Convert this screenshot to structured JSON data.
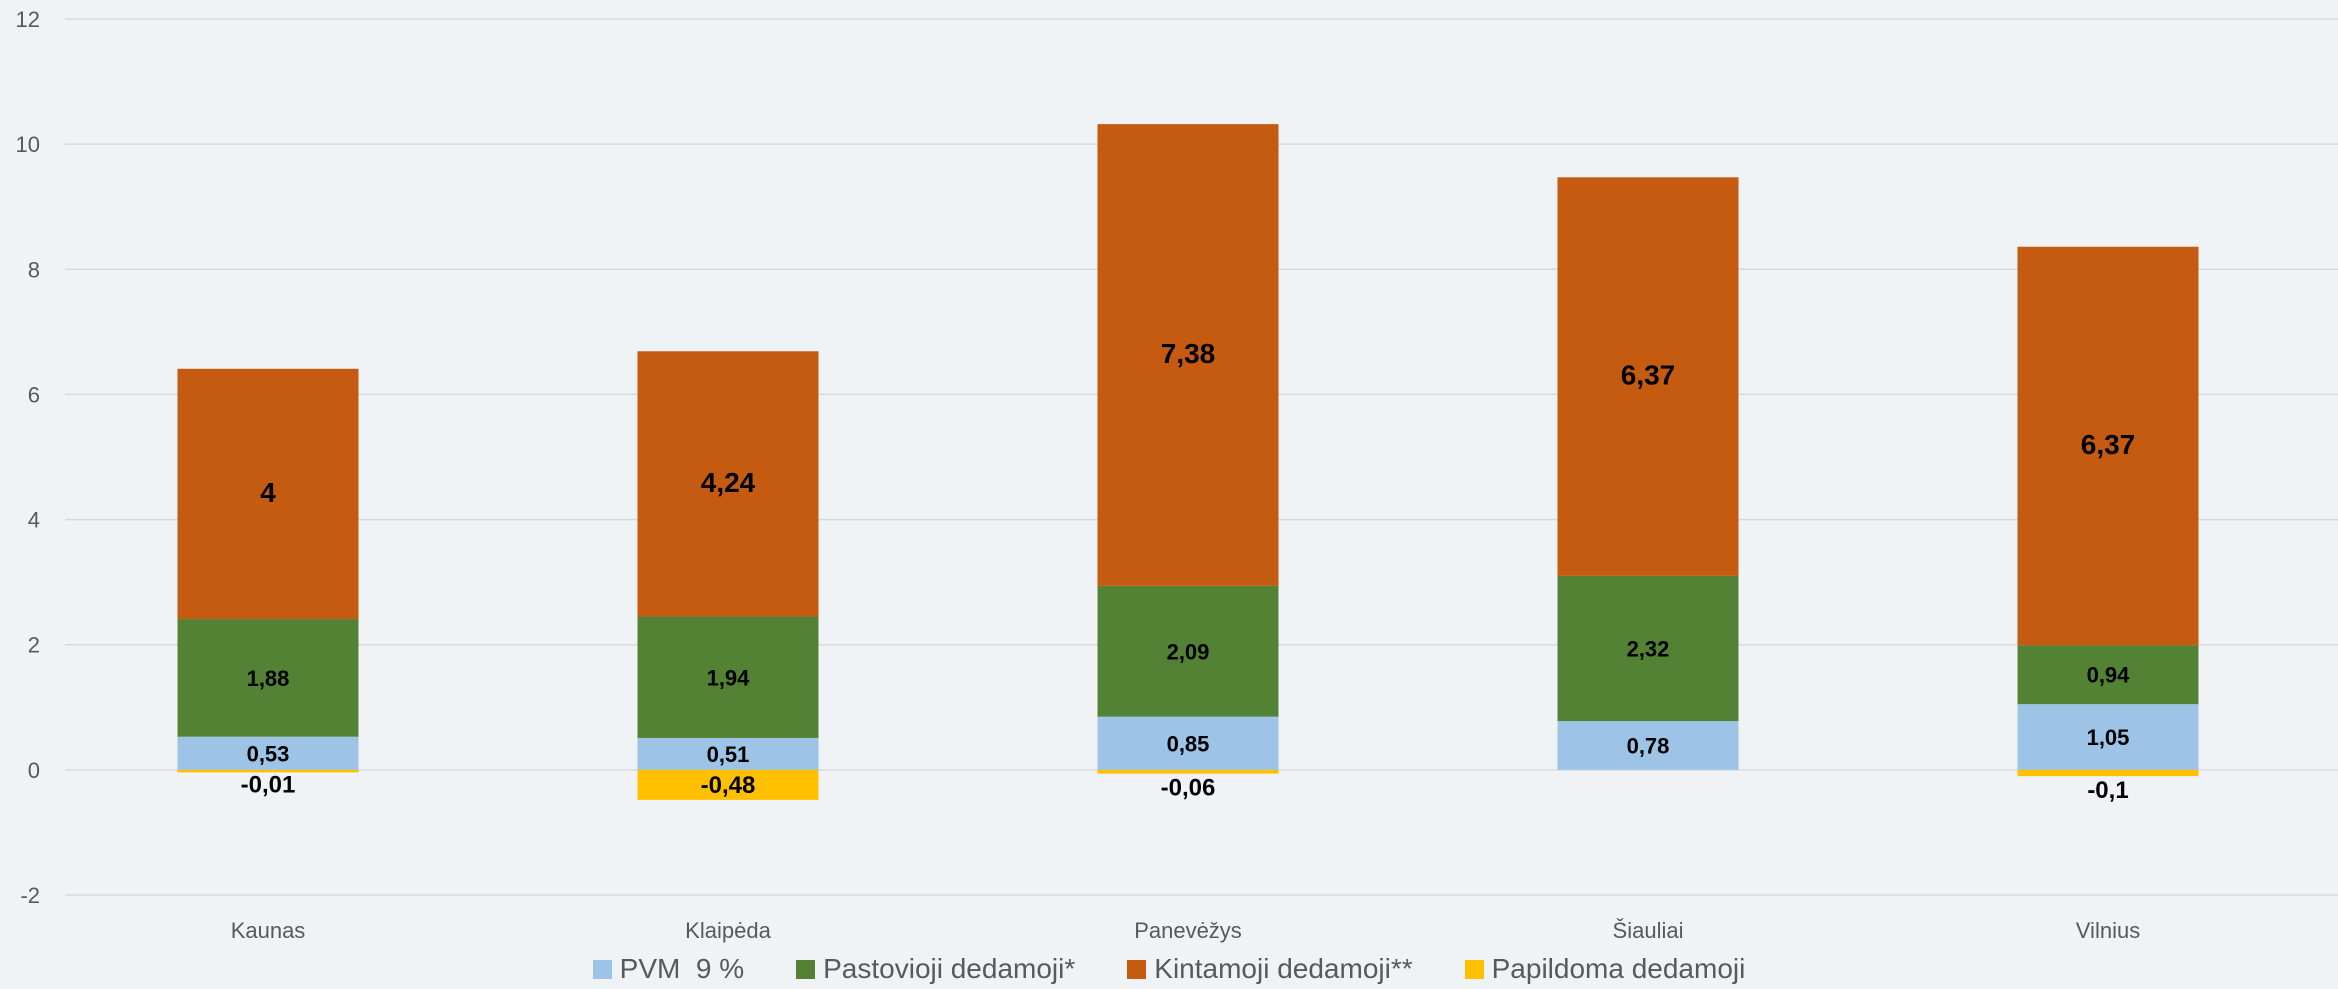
{
  "chart_data": {
    "type": "bar",
    "stacked": true,
    "categories": [
      "Kaunas",
      "Klaipėda",
      "Panevėžys",
      "Šiauliai",
      "Vilnius"
    ],
    "ylim": [
      -2,
      12
    ],
    "yticks": [
      -2,
      0,
      2,
      4,
      6,
      8,
      10,
      12
    ],
    "grid": true,
    "legend_position": "bottom",
    "series": [
      {
        "name": "PVM  9 %",
        "color": "#9dc3e6",
        "values": [
          0.53,
          0.51,
          0.85,
          0.78,
          1.05
        ],
        "labels": [
          "0,53",
          "0,51",
          "0,85",
          "0,78",
          "1,05"
        ]
      },
      {
        "name": "Pastovioji dedamoji*",
        "color": "#548235",
        "values": [
          1.88,
          1.94,
          2.09,
          2.32,
          0.94
        ],
        "labels": [
          "1,88",
          "1,94",
          "2,09",
          "2,32",
          "0,94"
        ]
      },
      {
        "name": "Kintamoji dedamoji**",
        "color": "#c55a11",
        "values": [
          4,
          4.24,
          7.38,
          6.37,
          6.37
        ],
        "labels": [
          "4",
          "4,24",
          "7,38",
          "6,37",
          "6,37"
        ]
      },
      {
        "name": "Papildoma dedamoji",
        "color": "#ffc000",
        "values": [
          -0.01,
          -0.48,
          -0.06,
          0,
          -0.1
        ],
        "labels": [
          "-0,01",
          "-0,48",
          "-0,06",
          "",
          "-0,1"
        ]
      }
    ]
  }
}
